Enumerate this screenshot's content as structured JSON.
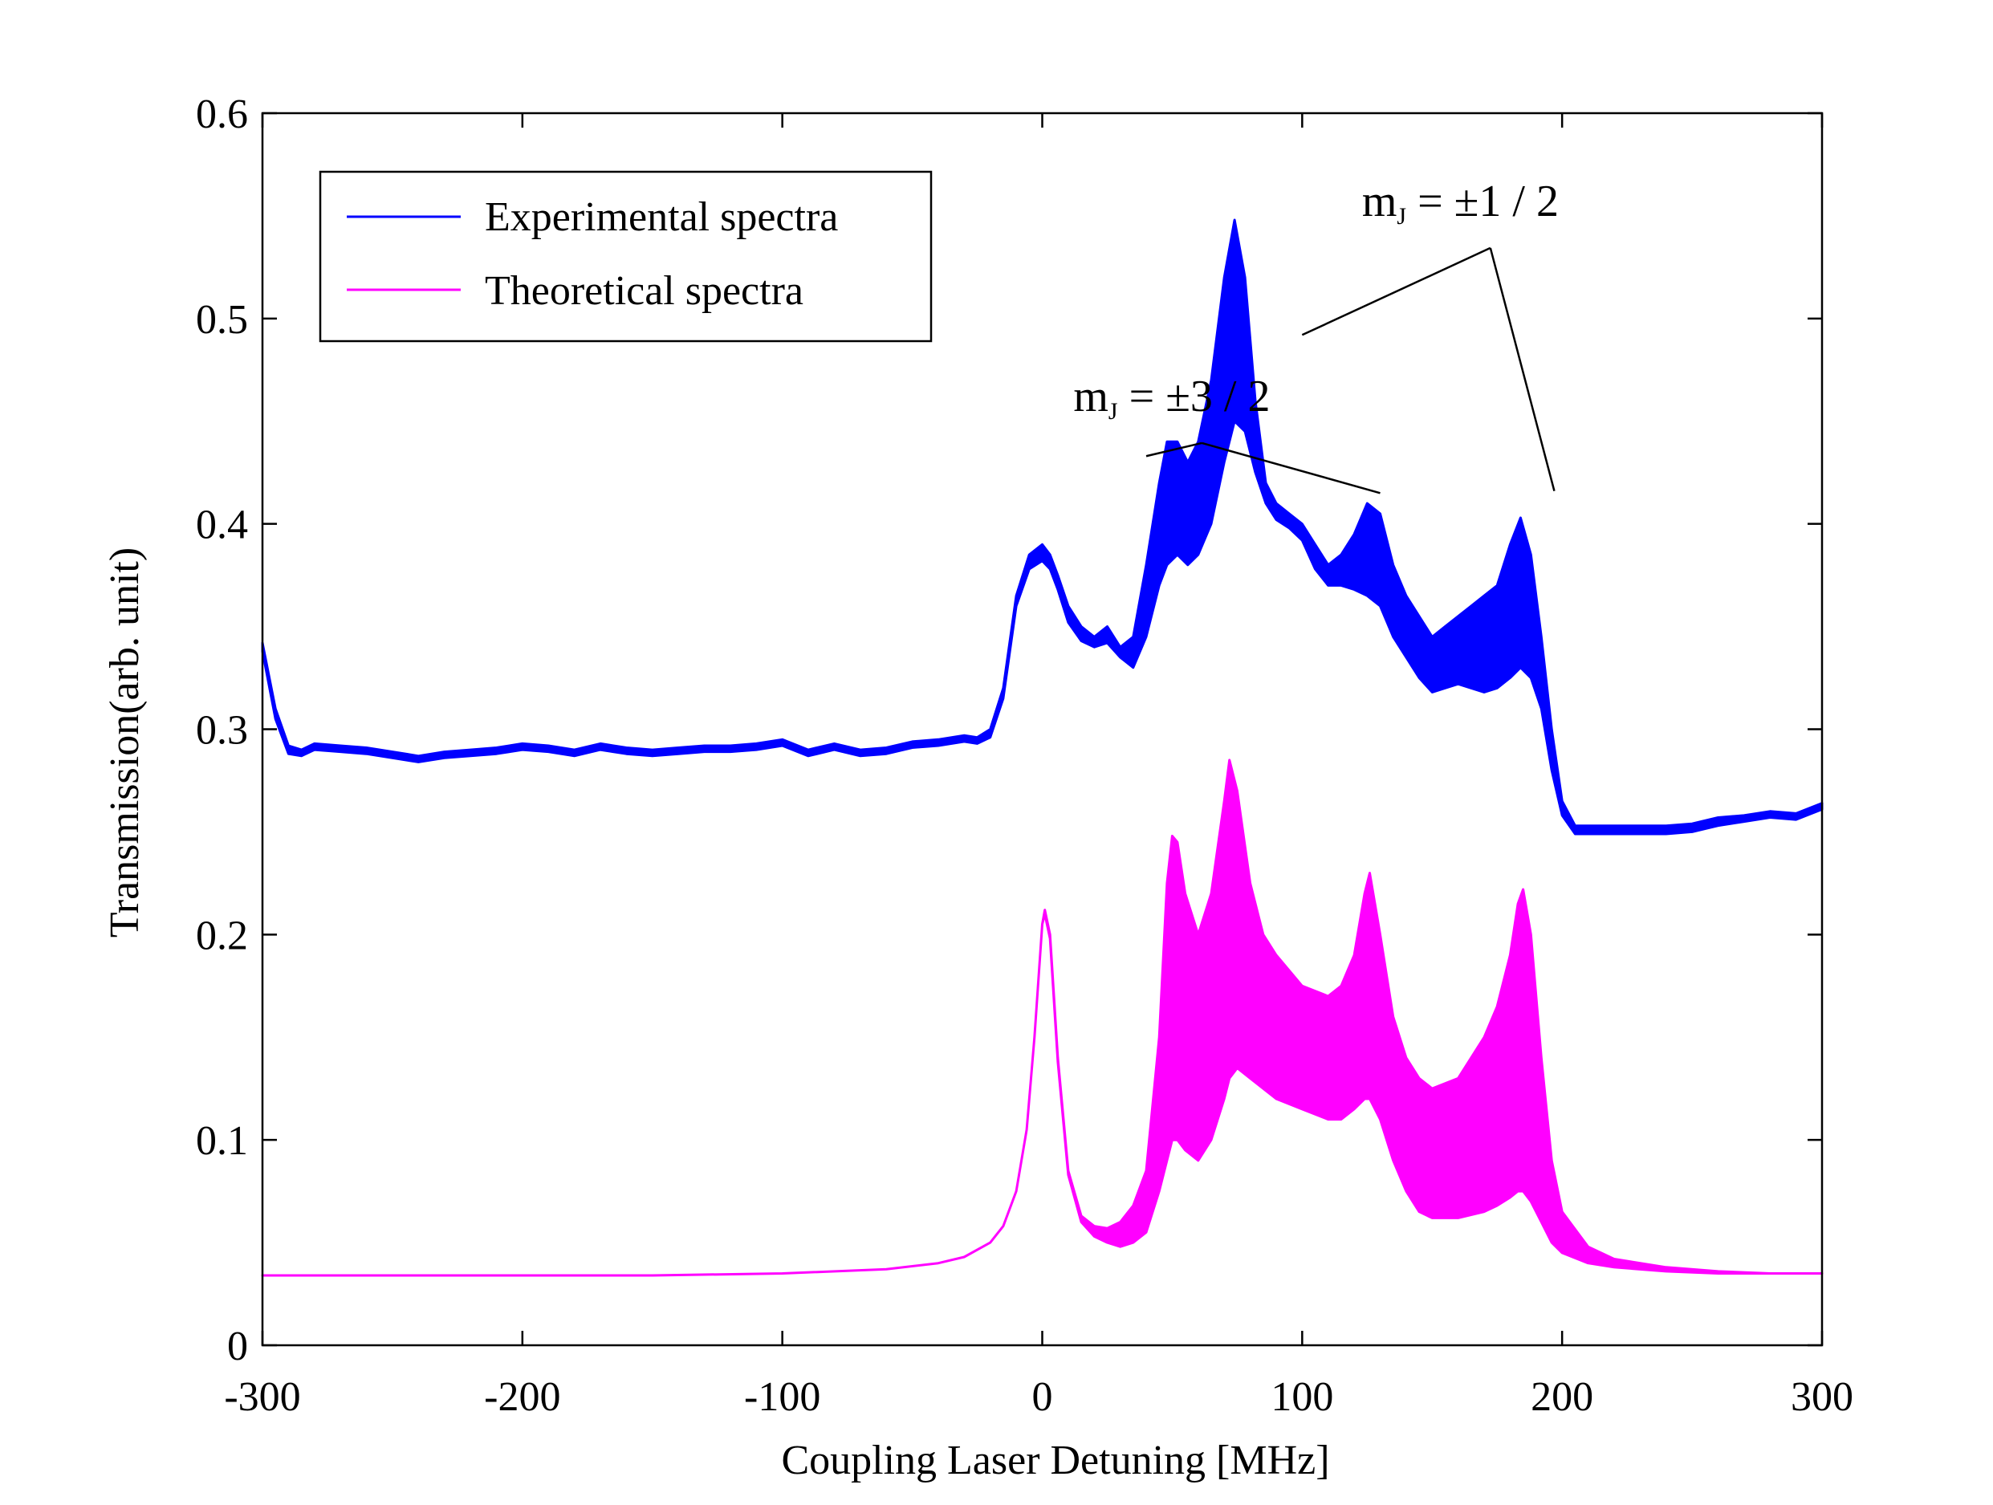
{
  "chart_data": {
    "type": "line",
    "title": "",
    "xlabel": "Coupling Laser Detuning [MHz]",
    "ylabel": "Transmission(arb. unit)",
    "xlim": [
      -300,
      300
    ],
    "ylim": [
      0,
      0.6
    ],
    "x_ticks": [
      {
        "value": -300,
        "label": "-300"
      },
      {
        "value": -200,
        "label": "-200"
      },
      {
        "value": -100,
        "label": "-100"
      },
      {
        "value": 0,
        "label": "0"
      },
      {
        "value": 100,
        "label": "100"
      },
      {
        "value": 200,
        "label": "200"
      },
      {
        "value": 300,
        "label": "300"
      }
    ],
    "y_ticks": [
      {
        "value": 0,
        "label": "0"
      },
      {
        "value": 0.1,
        "label": "0.1"
      },
      {
        "value": 0.2,
        "label": "0.2"
      },
      {
        "value": 0.3,
        "label": "0.3"
      },
      {
        "value": 0.4,
        "label": "0.4"
      },
      {
        "value": 0.5,
        "label": "0.5"
      },
      {
        "value": 0.6,
        "label": "0.6"
      }
    ],
    "grid": false,
    "legend_position": "top-left",
    "series": [
      {
        "name": "Experimental spectra",
        "color": "#0000ff",
        "x": [
          -300,
          -295,
          -290,
          -285,
          -280,
          -270,
          -260,
          -250,
          -240,
          -230,
          -220,
          -210,
          -200,
          -190,
          -180,
          -170,
          -160,
          -150,
          -140,
          -130,
          -120,
          -110,
          -100,
          -90,
          -80,
          -70,
          -60,
          -50,
          -40,
          -30,
          -25,
          -20,
          -15,
          -10,
          -5,
          0,
          3,
          6,
          10,
          15,
          20,
          25,
          30,
          35,
          40,
          45,
          48,
          52,
          56,
          60,
          65,
          70,
          74,
          78,
          82,
          86,
          90,
          95,
          100,
          105,
          110,
          115,
          120,
          125,
          130,
          135,
          140,
          145,
          150,
          155,
          160,
          165,
          170,
          175,
          180,
          184,
          188,
          192,
          196,
          200,
          205,
          210,
          220,
          230,
          240,
          250,
          260,
          270,
          280,
          290,
          300
        ],
        "upper": [
          0.342,
          0.31,
          0.292,
          0.29,
          0.293,
          0.292,
          0.291,
          0.289,
          0.287,
          0.289,
          0.29,
          0.291,
          0.293,
          0.292,
          0.29,
          0.293,
          0.291,
          0.29,
          0.291,
          0.292,
          0.292,
          0.293,
          0.295,
          0.29,
          0.293,
          0.29,
          0.291,
          0.294,
          0.295,
          0.297,
          0.296,
          0.3,
          0.32,
          0.365,
          0.385,
          0.39,
          0.385,
          0.375,
          0.36,
          0.35,
          0.345,
          0.35,
          0.34,
          0.345,
          0.38,
          0.42,
          0.44,
          0.44,
          0.43,
          0.44,
          0.47,
          0.52,
          0.548,
          0.52,
          0.46,
          0.42,
          0.41,
          0.405,
          0.4,
          0.39,
          0.38,
          0.385,
          0.395,
          0.41,
          0.405,
          0.38,
          0.365,
          0.355,
          0.345,
          0.35,
          0.355,
          0.36,
          0.365,
          0.37,
          0.39,
          0.403,
          0.385,
          0.345,
          0.3,
          0.265,
          0.253,
          0.253,
          0.253,
          0.253,
          0.253,
          0.254,
          0.257,
          0.258,
          0.26,
          0.259,
          0.264
        ],
        "lower": [
          0.338,
          0.305,
          0.288,
          0.287,
          0.29,
          0.289,
          0.288,
          0.286,
          0.284,
          0.286,
          0.287,
          0.288,
          0.29,
          0.289,
          0.287,
          0.29,
          0.288,
          0.287,
          0.288,
          0.289,
          0.289,
          0.29,
          0.292,
          0.287,
          0.29,
          0.287,
          0.288,
          0.291,
          0.292,
          0.294,
          0.293,
          0.296,
          0.315,
          0.36,
          0.378,
          0.382,
          0.378,
          0.368,
          0.352,
          0.343,
          0.34,
          0.342,
          0.335,
          0.33,
          0.345,
          0.37,
          0.38,
          0.385,
          0.38,
          0.385,
          0.4,
          0.43,
          0.45,
          0.445,
          0.425,
          0.41,
          0.402,
          0.398,
          0.392,
          0.378,
          0.37,
          0.37,
          0.368,
          0.365,
          0.36,
          0.345,
          0.335,
          0.325,
          0.318,
          0.32,
          0.322,
          0.32,
          0.318,
          0.32,
          0.325,
          0.33,
          0.325,
          0.31,
          0.28,
          0.258,
          0.249,
          0.249,
          0.249,
          0.249,
          0.249,
          0.25,
          0.253,
          0.255,
          0.257,
          0.256,
          0.261
        ]
      },
      {
        "name": "Theoretical spectra",
        "color": "#ff00ff",
        "x": [
          -300,
          -250,
          -200,
          -150,
          -100,
          -60,
          -40,
          -30,
          -20,
          -15,
          -10,
          -6,
          -3,
          0,
          1,
          3,
          6,
          10,
          15,
          20,
          25,
          30,
          35,
          40,
          45,
          48,
          50,
          52,
          55,
          60,
          65,
          70,
          72,
          75,
          80,
          85,
          90,
          100,
          110,
          115,
          120,
          124,
          126,
          130,
          135,
          140,
          145,
          150,
          160,
          170,
          175,
          180,
          183,
          185,
          188,
          192,
          196,
          200,
          210,
          220,
          240,
          260,
          280,
          300
        ],
        "upper": [
          0.034,
          0.034,
          0.034,
          0.034,
          0.035,
          0.037,
          0.04,
          0.043,
          0.05,
          0.058,
          0.075,
          0.105,
          0.15,
          0.205,
          0.212,
          0.2,
          0.14,
          0.085,
          0.063,
          0.058,
          0.057,
          0.06,
          0.068,
          0.085,
          0.15,
          0.225,
          0.248,
          0.245,
          0.22,
          0.2,
          0.22,
          0.265,
          0.285,
          0.27,
          0.225,
          0.2,
          0.19,
          0.175,
          0.17,
          0.175,
          0.19,
          0.22,
          0.23,
          0.2,
          0.16,
          0.14,
          0.13,
          0.125,
          0.13,
          0.15,
          0.165,
          0.19,
          0.215,
          0.222,
          0.2,
          0.14,
          0.09,
          0.065,
          0.048,
          0.042,
          0.038,
          0.036,
          0.035,
          0.035
        ],
        "lower": [
          0.034,
          0.034,
          0.034,
          0.034,
          0.035,
          0.037,
          0.04,
          0.043,
          0.05,
          0.058,
          0.075,
          0.105,
          0.15,
          0.205,
          0.21,
          0.198,
          0.138,
          0.083,
          0.06,
          0.053,
          0.05,
          0.048,
          0.05,
          0.055,
          0.075,
          0.09,
          0.1,
          0.1,
          0.095,
          0.09,
          0.1,
          0.12,
          0.13,
          0.135,
          0.13,
          0.125,
          0.12,
          0.115,
          0.11,
          0.11,
          0.115,
          0.12,
          0.12,
          0.11,
          0.09,
          0.075,
          0.065,
          0.062,
          0.062,
          0.065,
          0.068,
          0.072,
          0.075,
          0.075,
          0.07,
          0.06,
          0.05,
          0.045,
          0.04,
          0.038,
          0.036,
          0.035,
          0.035,
          0.035
        ]
      }
    ],
    "annotations": [
      {
        "name": "mj-3-2",
        "main": "m",
        "sub": "J",
        "rest": "= ±3 / 2",
        "targets_x": [
          40,
          130
        ],
        "targets_y": [
          0.433,
          0.415
        ],
        "label_x": 12,
        "label_y": 0.455
      },
      {
        "name": "mj-1-2",
        "main": "m",
        "sub": "J",
        "rest": "= ±1 / 2",
        "targets_x": [
          100,
          197
        ],
        "targets_y": [
          0.492,
          0.416
        ],
        "label_x": 123,
        "label_y": 0.55
      }
    ]
  }
}
